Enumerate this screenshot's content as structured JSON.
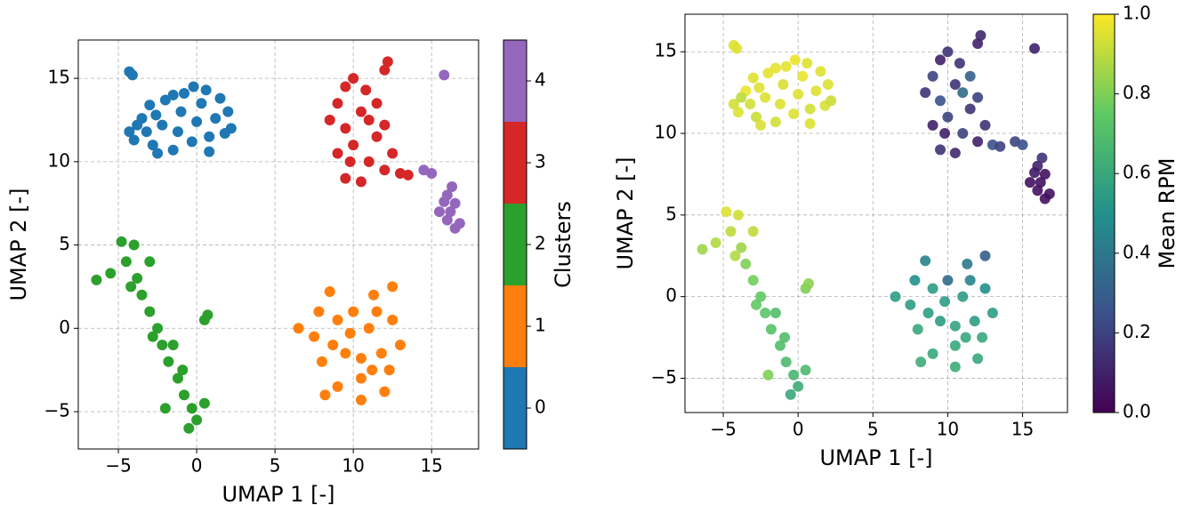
{
  "chart_data": [
    {
      "type": "scatter",
      "xlabel": "UMAP 1 [-]",
      "ylabel": "UMAP 2 [-]",
      "xlim": [
        -7.56,
        18.0
      ],
      "ylim": [
        -7.24,
        17.3
      ],
      "xticks": [
        {
          "value": -5,
          "label": "−5"
        },
        0,
        5,
        10,
        15
      ],
      "yticks": [
        {
          "value": -5,
          "label": "−5"
        },
        0,
        5,
        10,
        15
      ],
      "grid": true,
      "series": [
        {
          "color": "#1f77b4",
          "x": [
            -4.3,
            -4.1,
            -4.3,
            -4.0,
            -3.5,
            -3.0,
            -2.8,
            -2.2,
            -2.0,
            -1.5,
            -1.2,
            -1.0,
            -0.8,
            -0.3,
            0.0,
            0.3,
            0.6,
            0.8,
            1.2,
            1.8,
            2.2,
            0.8,
            -2.5,
            -3.8,
            -1.5,
            1.5,
            -0.2,
            -3.2,
            2.0,
            -2.6
          ],
          "values": [
            15.4,
            15.2,
            11.8,
            11.3,
            12.6,
            13.4,
            11.0,
            12.2,
            13.7,
            10.7,
            11.8,
            13.0,
            14.1,
            11.2,
            12.4,
            13.5,
            14.3,
            11.5,
            12.6,
            11.7,
            12.0,
            10.6,
            10.5,
            12.2,
            14.0,
            13.8,
            14.5,
            11.8,
            13.0,
            12.8
          ]
        },
        {
          "color": "#ff7f0e",
          "x": [
            6.5,
            7.5,
            8.0,
            7.8,
            8.5,
            9.0,
            9.0,
            9.5,
            10.0,
            10.5,
            10.5,
            11.0,
            11.3,
            11.8,
            12.0,
            12.5,
            12.5,
            13.0,
            11.2,
            8.2,
            9.8,
            10.5,
            8.7,
            12.3,
            11.5
          ],
          "values": [
            0.0,
            -0.5,
            -2.0,
            1.0,
            2.2,
            0.5,
            -3.5,
            -1.5,
            1.0,
            -3.0,
            -4.3,
            0.0,
            2.0,
            -1.5,
            -3.8,
            2.5,
            0.5,
            -1.0,
            -2.5,
            -4.0,
            -0.3,
            -1.8,
            -1.0,
            -2.5,
            1.0
          ]
        },
        {
          "color": "#2ca02c",
          "x": [
            -6.4,
            -5.5,
            -4.8,
            -4.0,
            -4.5,
            -3.8,
            -3.5,
            -3.0,
            -2.5,
            -2.2,
            -1.8,
            -1.2,
            -0.8,
            -0.3,
            0.0,
            -0.5,
            0.5,
            -2.0,
            0.5,
            0.7,
            -3.0,
            -1.5,
            -4.2,
            -2.8,
            -0.9
          ],
          "values": [
            2.9,
            3.3,
            5.2,
            5.0,
            4.0,
            3.0,
            2.0,
            1.0,
            0.0,
            -1.0,
            -2.0,
            -3.0,
            -4.0,
            -4.8,
            -5.5,
            -6.0,
            -4.5,
            -4.8,
            0.5,
            0.8,
            4.0,
            -1.0,
            2.5,
            -0.5,
            -2.5
          ]
        },
        {
          "color": "#d62728",
          "x": [
            8.5,
            9.0,
            9.5,
            10.0,
            9.5,
            10.5,
            10.0,
            9.0,
            9.5,
            10.5,
            11.0,
            11.5,
            11.5,
            12.0,
            12.2,
            12.0,
            12.5,
            12.0,
            13.0,
            13.5,
            10.8,
            11.0,
            9.8
          ],
          "values": [
            12.5,
            13.5,
            14.5,
            15.0,
            12.0,
            13.0,
            11.0,
            10.5,
            9.0,
            8.8,
            10.0,
            11.5,
            13.5,
            15.5,
            16.0,
            12.2,
            10.5,
            9.5,
            9.3,
            9.2,
            14.3,
            12.5,
            10.0
          ]
        },
        {
          "color": "#9467bd",
          "x": [
            15.8,
            15.5,
            16.0,
            16.5,
            16.0,
            16.3,
            16.8,
            16.5,
            15.8,
            14.5,
            15.0,
            16.2
          ],
          "values": [
            15.2,
            7.0,
            6.5,
            7.5,
            8.0,
            8.5,
            6.3,
            6.0,
            7.6,
            9.5,
            9.3,
            7.0
          ]
        }
      ],
      "colorbar": {
        "label": "Clusters",
        "lim": [
          -0.5,
          4.5
        ],
        "ticks": [
          0,
          1,
          2,
          3,
          4
        ]
      }
    },
    {
      "type": "scatter",
      "xlabel": "UMAP 1 [-]",
      "ylabel": "UMAP 2 [-]",
      "xlim": [
        -7.56,
        18.0
      ],
      "ylim": [
        -7.1,
        17.3
      ],
      "xticks": [
        {
          "value": -5,
          "label": "−5"
        },
        0,
        5,
        10,
        15
      ],
      "yticks": [
        {
          "value": -5,
          "label": "−5"
        },
        0,
        5,
        10,
        15
      ],
      "grid": true,
      "series": [
        {
          "x": [
            -4.3,
            -4.1,
            -4.3,
            -4.0,
            -3.5,
            -3.0,
            -2.8,
            -2.2,
            -2.0,
            -1.5,
            -1.2,
            -1.0,
            -0.8,
            -0.3,
            0.0,
            0.3,
            0.6,
            0.8,
            1.2,
            1.8,
            2.2,
            0.8,
            -2.5,
            -3.8,
            -1.5,
            1.5,
            -0.2,
            -3.2,
            2.0,
            -2.6,
            6.5,
            7.5,
            8.0,
            7.8,
            8.5,
            9.0,
            9.0,
            9.5,
            10.0,
            10.5,
            10.5,
            11.0,
            11.3,
            11.8,
            12.0,
            12.5,
            12.5,
            13.0,
            11.2,
            8.2,
            9.8,
            10.5,
            8.7,
            12.3,
            11.5,
            -6.4,
            -5.5,
            -4.8,
            -4.0,
            -4.5,
            -3.8,
            -3.5,
            -3.0,
            -2.5,
            -2.2,
            -1.8,
            -1.2,
            -0.8,
            -0.3,
            0.0,
            -0.5,
            0.5,
            -2.0,
            0.5,
            0.7,
            -3.0,
            -1.5,
            -4.2,
            -2.8,
            -0.9,
            8.5,
            9.0,
            9.5,
            10.0,
            9.5,
            10.5,
            10.0,
            9.0,
            9.5,
            10.5,
            11.0,
            11.5,
            11.5,
            12.0,
            12.2,
            12.0,
            12.5,
            12.0,
            13.0,
            13.5,
            10.8,
            11.0,
            9.8,
            15.8,
            15.5,
            16.0,
            16.5,
            16.0,
            16.3,
            16.8,
            16.5,
            15.8,
            14.5,
            15.0,
            16.2
          ],
          "values": [
            15.4,
            15.2,
            11.8,
            11.3,
            12.6,
            13.4,
            11.0,
            12.2,
            13.7,
            10.7,
            11.8,
            13.0,
            14.1,
            11.2,
            12.4,
            13.5,
            14.3,
            11.5,
            12.6,
            11.7,
            12.0,
            10.6,
            10.5,
            12.2,
            14.0,
            13.8,
            14.5,
            11.8,
            13.0,
            12.8,
            0.0,
            -0.5,
            -2.0,
            1.0,
            2.2,
            0.5,
            -3.5,
            -1.5,
            1.0,
            -3.0,
            -4.3,
            0.0,
            2.0,
            -1.5,
            -3.8,
            2.5,
            0.5,
            -1.0,
            -2.5,
            -4.0,
            -0.3,
            -1.8,
            -1.0,
            -2.5,
            1.0,
            2.9,
            3.3,
            5.2,
            5.0,
            4.0,
            3.0,
            2.0,
            1.0,
            0.0,
            -1.0,
            -2.0,
            -3.0,
            -4.0,
            -4.8,
            -5.5,
            -6.0,
            -4.5,
            -4.8,
            0.5,
            0.8,
            4.0,
            -1.0,
            2.5,
            -0.5,
            -2.5,
            12.5,
            13.5,
            14.5,
            15.0,
            12.0,
            13.0,
            11.0,
            10.5,
            9.0,
            8.8,
            10.0,
            11.5,
            13.5,
            15.5,
            16.0,
            12.2,
            10.5,
            9.5,
            9.3,
            9.2,
            14.3,
            12.5,
            10.0,
            15.2,
            7.0,
            6.5,
            7.5,
            8.0,
            8.5,
            6.3,
            6.0,
            7.6,
            9.5,
            9.3,
            7.0
          ],
          "color_values": [
            0.95,
            0.95,
            0.93,
            0.95,
            0.97,
            0.95,
            0.92,
            0.95,
            0.96,
            0.93,
            0.95,
            0.94,
            0.96,
            0.95,
            0.95,
            0.97,
            0.95,
            0.93,
            0.95,
            0.94,
            0.92,
            0.95,
            0.94,
            0.9,
            0.96,
            0.95,
            0.97,
            0.93,
            0.95,
            0.95,
            0.55,
            0.55,
            0.6,
            0.5,
            0.45,
            0.55,
            0.6,
            0.55,
            0.35,
            0.6,
            0.62,
            0.55,
            0.4,
            0.55,
            0.6,
            0.3,
            0.5,
            0.55,
            0.6,
            0.62,
            0.55,
            0.58,
            0.55,
            0.6,
            0.45,
            0.85,
            0.88,
            0.95,
            0.93,
            0.9,
            0.85,
            0.8,
            0.78,
            0.75,
            0.73,
            0.72,
            0.7,
            0.68,
            0.66,
            0.62,
            0.6,
            0.68,
            0.8,
            0.8,
            0.82,
            0.9,
            0.7,
            0.88,
            0.75,
            0.7,
            0.15,
            0.2,
            0.1,
            0.15,
            0.25,
            0.15,
            0.2,
            0.1,
            0.15,
            0.12,
            0.2,
            0.15,
            0.3,
            0.1,
            0.12,
            0.2,
            0.15,
            0.1,
            0.25,
            0.2,
            0.15,
            0.35,
            0.1,
            0.1,
            0.05,
            0.05,
            0.05,
            0.1,
            0.15,
            0.05,
            0.05,
            0.08,
            0.2,
            0.25,
            0.05
          ]
        }
      ],
      "colorbar": {
        "label": "Mean RPM",
        "colormap": "viridis",
        "lim": [
          0,
          1
        ],
        "ticks": [
          {
            "value": 0,
            "label": "0.0"
          },
          {
            "value": 0.2,
            "label": "0.2"
          },
          {
            "value": 0.4,
            "label": "0.4"
          },
          {
            "value": 0.6,
            "label": "0.6"
          },
          {
            "value": 0.8,
            "label": "0.8"
          },
          {
            "value": 1,
            "label": "1.0"
          }
        ]
      }
    }
  ]
}
